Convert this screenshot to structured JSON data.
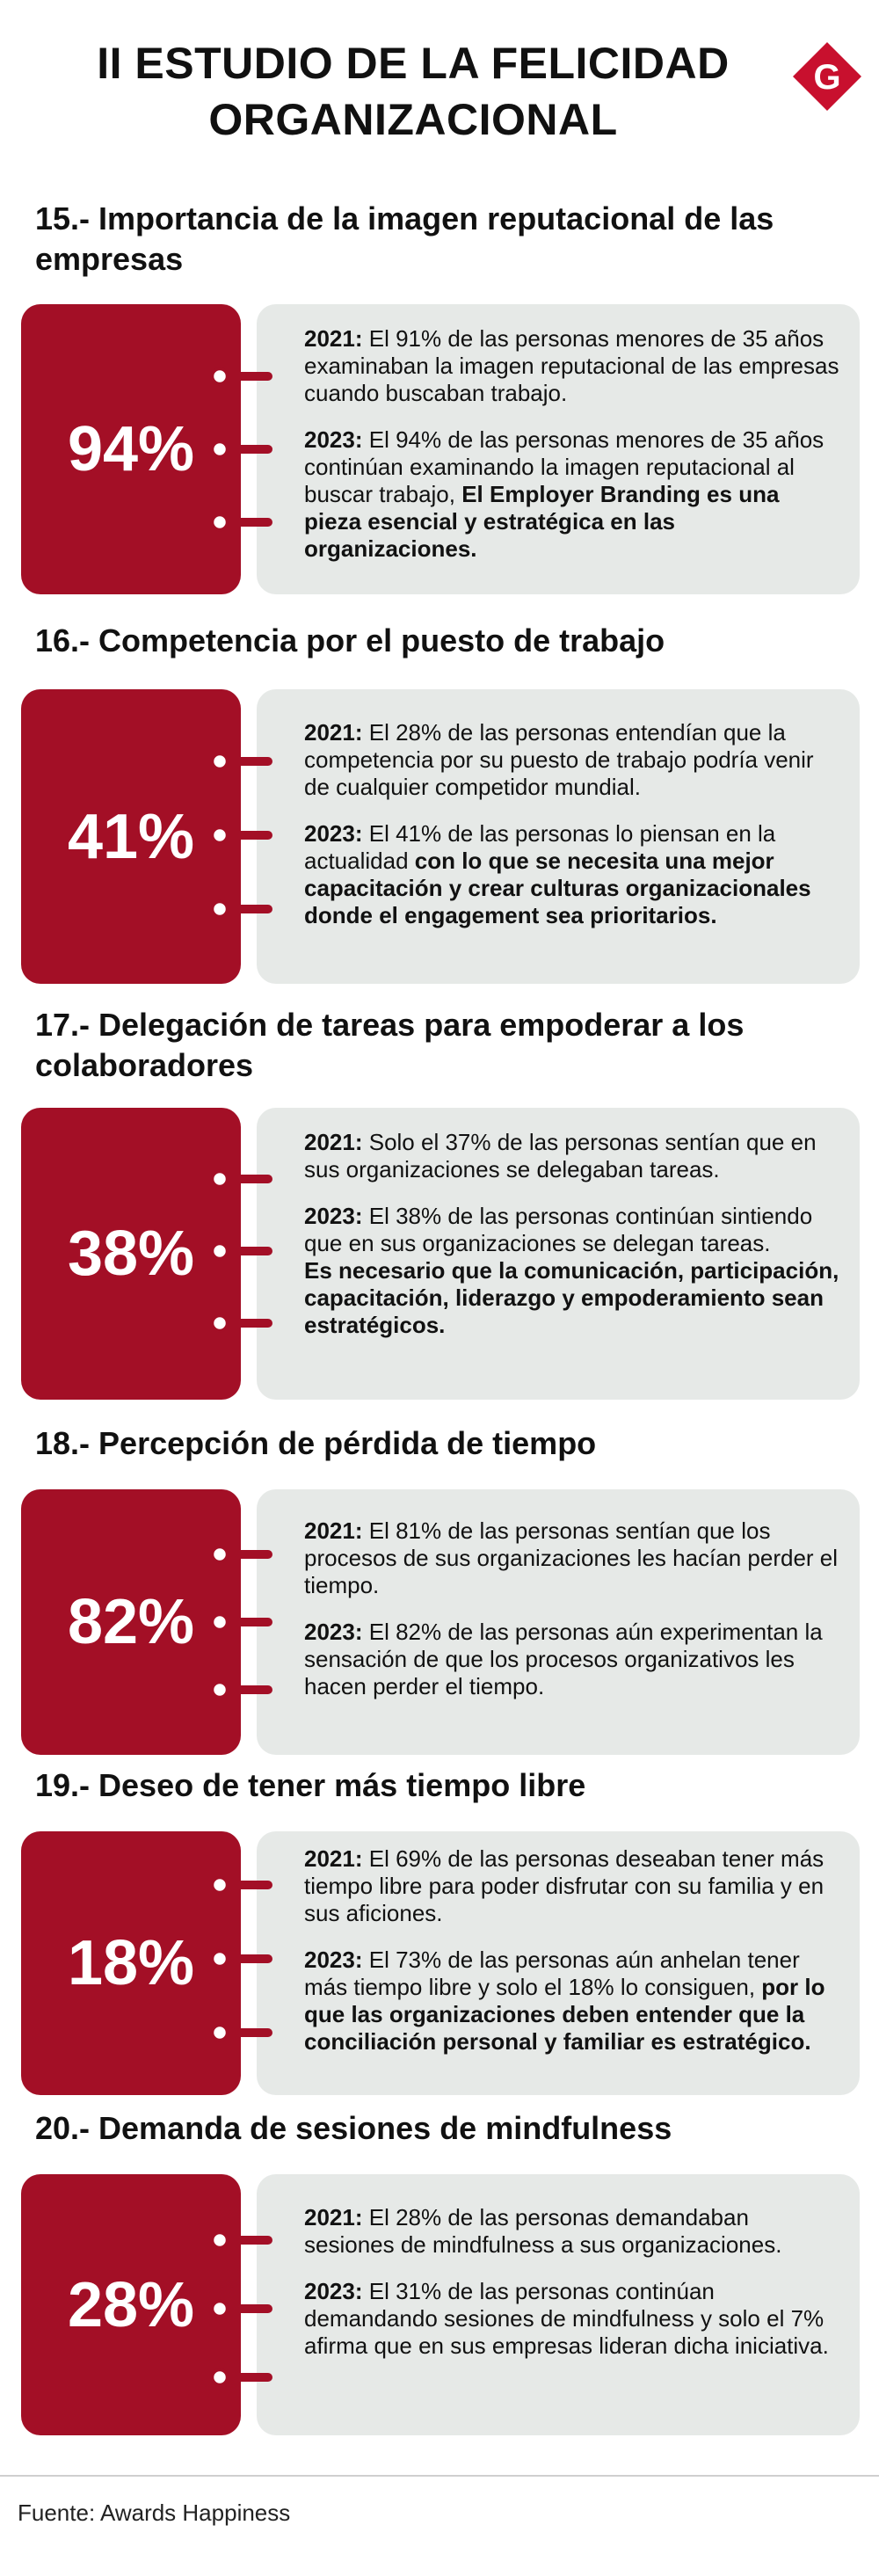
{
  "header": {
    "title_line1": "II ESTUDIO DE LA FELICIDAD",
    "title_line2": "ORGANIZACIONAL",
    "logo_letter": "G",
    "brand_color": "#c8102e"
  },
  "sections": [
    {
      "title": "15.- Importancia de la imagen reputacional de las empresas",
      "percent": "94%",
      "p1_year": "2021:",
      "p1_text": " El 91% de las personas menores de 35 años examinaban la imagen reputacional de las empresas cuando buscaban trabajo.",
      "p2_year": "2023:",
      "p2_text": " El 94% de las personas menores de 35 años continúan examinando la imagen reputacional al buscar trabajo, ",
      "p2_bold": "El Employer Branding es una pieza esencial y estratégica en las organizaciones."
    },
    {
      "title": "16.- Competencia por el puesto de trabajo",
      "percent": "41%",
      "p1_year": "2021:",
      "p1_text": " El 28% de las personas entendían que la competencia por su puesto de trabajo podría venir de cualquier competidor mundial.",
      "p2_year": "2023:",
      "p2_text": " El 41% de las personas lo piensan en la actualidad ",
      "p2_bold": "con lo que se necesita una mejor capacitación y crear culturas organizacionales donde el engagement sea prioritarios."
    },
    {
      "title": "17.- Delegación de tareas para empoderar a los colaboradores",
      "percent": "38%",
      "p1_year": "2021:",
      "p1_text": " Solo el 37% de las personas sentían que en sus organizaciones se delegaban tareas.",
      "p2_year": "2023:",
      "p2_text": " El 38% de las personas continúan sintiendo que en sus organizaciones se delegan tareas.",
      "p3_bold": "Es necesario que la comunicación, participación, capacitación, liderazgo y empoderamiento sean estratégicos."
    },
    {
      "title": "18.- Percepción de pérdida de tiempo",
      "percent": "82%",
      "p1_year": "2021:",
      "p1_text": " El 81% de las personas sentían que los procesos de sus organizaciones les hacían perder el tiempo.",
      "p2_year": "2023:",
      "p2_text": " El 82% de las personas aún experimentan la sensación de que los procesos organizativos les hacen perder el tiempo."
    },
    {
      "title": "19.- Deseo de tener más tiempo libre",
      "percent": "18%",
      "p1_year": "2021:",
      "p1_text": " El 69% de las personas deseaban tener más tiempo libre para poder disfrutar con su familia y en sus aficiones.",
      "p2_year": "2023:",
      "p2_text": " El 73% de las personas aún anhelan tener más tiempo libre y solo el 18% lo consiguen, ",
      "p2_bold": "por lo que las organizaciones deben entender que la conciliación personal y familiar es estratégico."
    },
    {
      "title": "20.- Demanda de sesiones de mindfulness",
      "percent": "28%",
      "p1_year": "2021:",
      "p1_text": " El 28% de las personas demandaban sesiones de mindfulness a sus organizaciones.",
      "p2_year": "2023:",
      "p2_text": " El 31% de las personas continúan demandando sesiones de mindfulness y solo el 7% afirma que en sus empresas lideran dicha iniciativa."
    }
  ],
  "footer": {
    "source": "Fuente: Awards Happiness"
  }
}
